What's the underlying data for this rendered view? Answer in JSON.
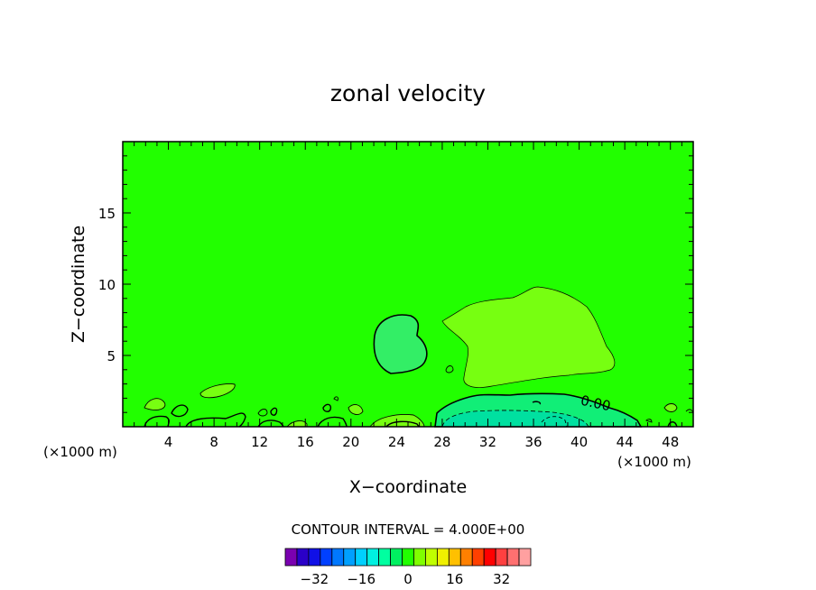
{
  "chart_data": {
    "type": "contour",
    "title": "zonal velocity",
    "xlabel": "X−coordinate",
    "ylabel": "Z−coordinate",
    "x_unit_left": "(×1000 m)",
    "x_unit_right": "(×1000 m)",
    "xlim": [
      0,
      50
    ],
    "ylim": [
      0,
      20
    ],
    "x_ticks": [
      4,
      8,
      12,
      16,
      20,
      24,
      28,
      32,
      36,
      40,
      44,
      48
    ],
    "y_ticks": [
      5,
      10,
      15
    ],
    "x_tick_labels": [
      "4",
      "8",
      "12",
      "16",
      "20",
      "24",
      "28",
      "32",
      "36",
      "40",
      "44",
      "48"
    ],
    "y_tick_labels": [
      "5",
      "10",
      "15"
    ],
    "background_level_color": "#22ff00",
    "contour_label": "0.00",
    "contour_interval_text": "CONTOUR INTERVAL = 4.000E+00",
    "colorbar": {
      "colors": [
        "#7a00b0",
        "#2a00c8",
        "#1010e6",
        "#0040ff",
        "#0078ff",
        "#00a0ff",
        "#00d0ff",
        "#00f0e0",
        "#00ffa0",
        "#00f060",
        "#22ff00",
        "#80ff00",
        "#c0ff00",
        "#f0f000",
        "#ffc000",
        "#ff8000",
        "#ff4000",
        "#ff0000",
        "#ff4040",
        "#ff7070",
        "#ffa0a0"
      ],
      "tick_values": [
        -32,
        -16,
        0,
        16,
        32
      ],
      "tick_labels": [
        "−32",
        "−16",
        "0",
        "16",
        "32"
      ],
      "min": -42,
      "max": 42
    },
    "regions": [
      {
        "name": "negative-cell-x24",
        "color": "#33ee66"
      },
      {
        "name": "positive-cell-x36",
        "color": "#77ff11"
      },
      {
        "name": "surface-jet",
        "color": "#11ee77"
      },
      {
        "name": "surface-jet-core",
        "color": "#00e0a0"
      }
    ]
  }
}
